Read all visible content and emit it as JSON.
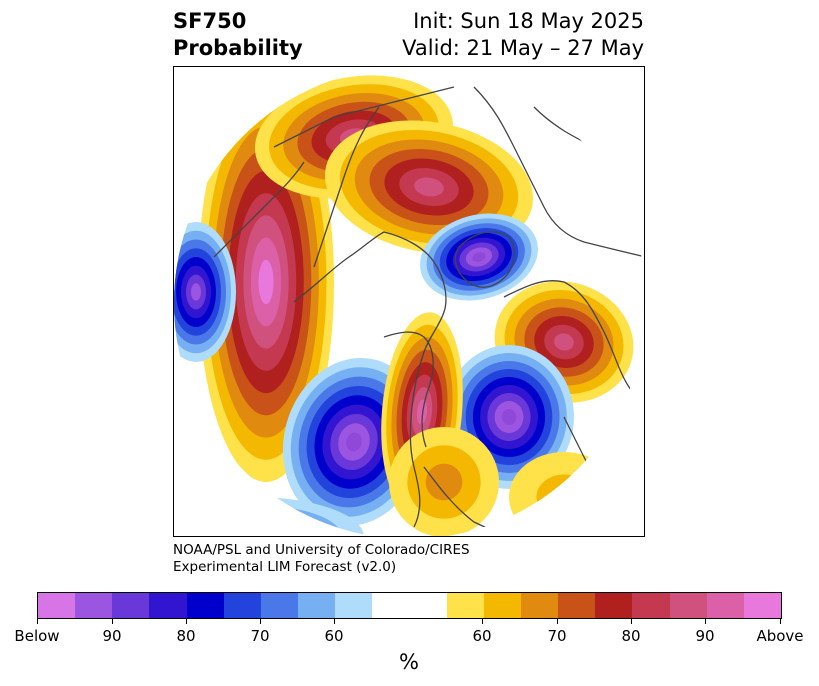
{
  "title": {
    "left_line1": "SF750",
    "left_line2": "Probability",
    "right_line1": "Init: Sun 18 May 2025",
    "right_line2": "Valid: 21 May – 27 May"
  },
  "credit": {
    "line1": "NOAA/PSL and University of Colorado/CIRES",
    "line2": "Experimental LIM Forecast (v2.0)"
  },
  "colorbar": {
    "unit": "%",
    "colors": [
      "#d775e6",
      "#9c55e0",
      "#6a38d8",
      "#3215d0",
      "#0000cc",
      "#2244dd",
      "#4a78e8",
      "#76b0f2",
      "#b0dcfb",
      "#ffffff",
      "#ffe14a",
      "#f5b800",
      "#e08a10",
      "#c85218",
      "#b0201e",
      "#c43850",
      "#d0507e",
      "#dc60a8",
      "#e878dc"
    ],
    "tick_labels": [
      "Below",
      "90",
      "80",
      "70",
      "60",
      "60",
      "70",
      "80",
      "90",
      "Above"
    ]
  },
  "map": {
    "projection": "north-polar-stereographic",
    "anomaly_blobs": [
      {
        "sign": "above",
        "name": "north-pacific-high",
        "peak": "Above"
      },
      {
        "sign": "above",
        "name": "east-siberia-high",
        "peak": "90"
      },
      {
        "sign": "above",
        "name": "central-canada-high",
        "peak": "90"
      },
      {
        "sign": "above",
        "name": "europe-high",
        "peak": "90"
      },
      {
        "sign": "below",
        "name": "arctic-low",
        "peak": "Below"
      },
      {
        "sign": "below",
        "name": "gulf-of-alaska-low",
        "peak": "Below"
      },
      {
        "sign": "below",
        "name": "western-us-low",
        "peak": "Below"
      },
      {
        "sign": "below",
        "name": "north-atlantic-low",
        "peak": "Below"
      }
    ],
    "palette": {
      "above": [
        "#ffe14a",
        "#f5b800",
        "#e08a10",
        "#c85218",
        "#b0201e",
        "#c43850",
        "#d0507e",
        "#dc60a8",
        "#e878dc"
      ],
      "below": [
        "#b0dcfb",
        "#76b0f2",
        "#4a78e8",
        "#2244dd",
        "#0000cc",
        "#3215d0",
        "#6a38d8",
        "#9c55e0",
        "#8f48d8"
      ],
      "coast": "#444444"
    }
  }
}
